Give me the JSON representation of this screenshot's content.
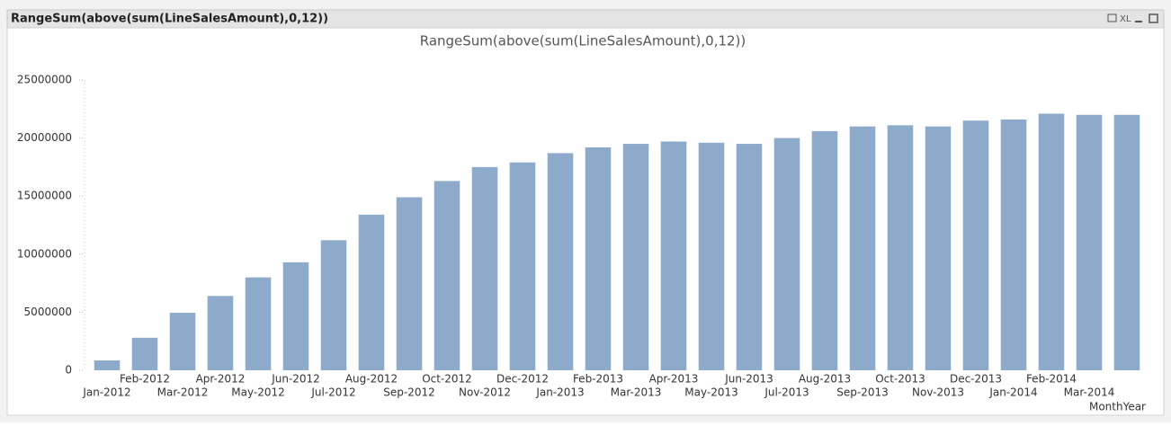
{
  "window": {
    "caption": "RangeSum(above(sum(LineSalesAmount),0,12))",
    "export_label": "XL"
  },
  "chart_data": {
    "type": "bar",
    "title": "RangeSum(above(sum(LineSalesAmount),0,12))",
    "x_label": "MonthYear",
    "categories": [
      "Jan-2012",
      "Feb-2012",
      "Mar-2012",
      "Apr-2012",
      "May-2012",
      "Jun-2012",
      "Jul-2012",
      "Aug-2012",
      "Sep-2012",
      "Oct-2012",
      "Nov-2012",
      "Dec-2012",
      "Jan-2013",
      "Feb-2013",
      "Mar-2013",
      "Apr-2013",
      "May-2013",
      "Jun-2013",
      "Jul-2013",
      "Aug-2013",
      "Sep-2013",
      "Oct-2013",
      "Nov-2013",
      "Dec-2013",
      "Jan-2014",
      "Feb-2014",
      "Mar-2014",
      null
    ],
    "values": [
      850000,
      2800000,
      4950000,
      6400000,
      8000000,
      9300000,
      11200000,
      13400000,
      14900000,
      16300000,
      17500000,
      17900000,
      18700000,
      19200000,
      19500000,
      19700000,
      19600000,
      19500000,
      20000000,
      20600000,
      21000000,
      21100000,
      21000000,
      21500000,
      21600000,
      22100000,
      22000000,
      22000000
    ],
    "color": "#8eaacb",
    "ylim": [
      0,
      25000000
    ],
    "yticks": [
      0,
      5000000,
      10000000,
      15000000,
      20000000,
      25000000
    ],
    "grid": false
  }
}
